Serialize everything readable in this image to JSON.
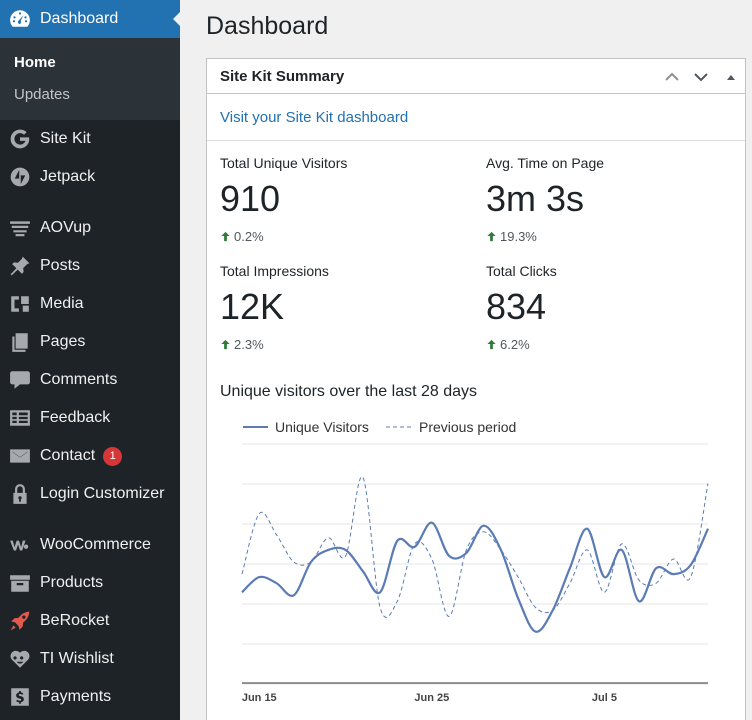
{
  "sidebar": {
    "dashboard_label": "Dashboard",
    "submenu": [
      {
        "label": "Home",
        "current": true
      },
      {
        "label": "Updates",
        "current": false
      }
    ],
    "group1": [
      {
        "label": "Site Kit",
        "icon": "google-g-icon"
      },
      {
        "label": "Jetpack",
        "icon": "jetpack-bolt-icon"
      }
    ],
    "group2": [
      {
        "label": "AOVup",
        "icon": "cart-icon"
      },
      {
        "label": "Posts",
        "icon": "pushpin-icon"
      },
      {
        "label": "Media",
        "icon": "media-icon"
      },
      {
        "label": "Pages",
        "icon": "pages-icon"
      },
      {
        "label": "Comments",
        "icon": "comment-bubble-icon"
      },
      {
        "label": "Feedback",
        "icon": "feedback-form-icon"
      },
      {
        "label": "Contact",
        "icon": "envelope-icon",
        "badge": "1"
      },
      {
        "label": "Login Customizer",
        "icon": "padlock-icon"
      }
    ],
    "group3": [
      {
        "label": "WooCommerce",
        "icon": "woocommerce-icon"
      },
      {
        "label": "Products",
        "icon": "archive-box-icon"
      },
      {
        "label": "BeRocket",
        "icon": "rocket-icon"
      },
      {
        "label": "TI Wishlist",
        "icon": "heart-icon"
      },
      {
        "label": "Payments",
        "icon": "dollar-icon"
      }
    ]
  },
  "page_title": "Dashboard",
  "panel": {
    "title": "Site Kit Summary",
    "visit_link": "Visit your Site Kit dashboard",
    "metrics": [
      {
        "label": "Total Unique Visitors",
        "value": "910",
        "change": "0.2%"
      },
      {
        "label": "Avg. Time on Page",
        "value": "3m 3s",
        "change": "19.3%"
      },
      {
        "label": "Total Impressions",
        "value": "12K",
        "change": "2.3%"
      },
      {
        "label": "Total Clicks",
        "value": "834",
        "change": "6.2%"
      }
    ],
    "chart_title": "Unique visitors over the last 28 days"
  },
  "colors": {
    "accent": "#2271b1",
    "sidebar_bg": "#1d2327",
    "submenu_bg": "#2c3338",
    "series": "#5b7bb5",
    "positive": "#2f7a3a",
    "badge": "#d63638"
  },
  "chart_data": {
    "type": "line",
    "title": "Unique visitors over the last 28 days",
    "legend": [
      "Unique Visitors",
      "Previous period"
    ],
    "x_tick_labels": [
      "Jun 15",
      "Jun 25",
      "Jul 5"
    ],
    "legend_position": "top-left",
    "grid": true,
    "series": [
      {
        "name": "Unique Visitors",
        "style": "solid",
        "values": [
          30,
          35,
          33,
          29,
          40,
          44,
          44,
          37,
          30,
          47,
          45,
          53,
          42,
          43,
          52,
          44,
          28,
          17,
          24,
          38,
          51,
          35,
          44,
          27,
          38,
          36,
          39,
          51
        ]
      },
      {
        "name": "Previous period",
        "style": "dashed",
        "values": [
          36,
          56,
          49,
          40,
          40,
          48,
          42,
          68,
          25,
          27,
          46,
          41,
          22,
          44,
          50,
          44,
          35,
          25,
          24,
          33,
          44,
          30,
          46,
          34,
          33,
          41,
          35,
          66
        ]
      }
    ]
  }
}
